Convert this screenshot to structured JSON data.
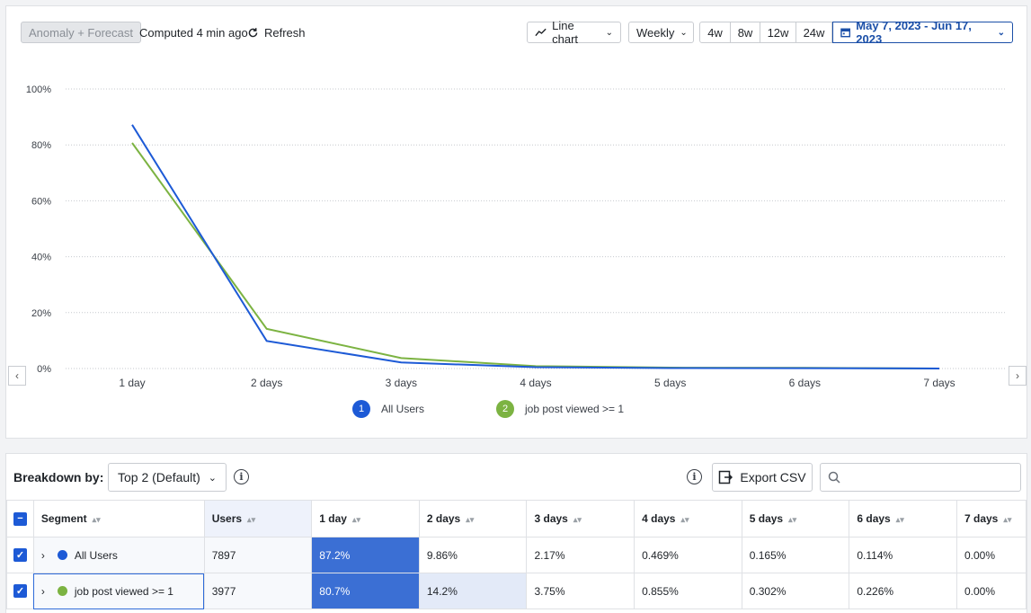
{
  "toolbar": {
    "anomaly_label": "Anomaly + Forecast",
    "computed_text": "Computed 4 min ago",
    "refresh_label": "Refresh",
    "chart_type_label": "Line chart",
    "interval_label": "Weekly",
    "range_options": [
      "4w",
      "8w",
      "12w",
      "24w"
    ],
    "date_range": "May 7, 2023 - Jun 17, 2023"
  },
  "chart_data": {
    "type": "line",
    "x": [
      "1 day",
      "2 days",
      "3 days",
      "4 days",
      "5 days",
      "6 days",
      "7 days"
    ],
    "y_ticks": [
      "100%",
      "80%",
      "60%",
      "40%",
      "20%",
      "0%"
    ],
    "ylim": [
      0,
      100
    ],
    "grid": true,
    "series": [
      {
        "name": "All Users",
        "number": "1",
        "color": "#1d5ad6",
        "values": [
          87.2,
          9.86,
          2.17,
          0.469,
          0.165,
          0.114,
          0.0
        ]
      },
      {
        "name": "job post viewed >= 1",
        "number": "2",
        "color": "#7cb342",
        "values": [
          80.7,
          14.2,
          3.75,
          0.855,
          0.302,
          0.226,
          0.0
        ]
      }
    ]
  },
  "breakdown": {
    "label": "Breakdown by:",
    "select_value": "Top 2 (Default)",
    "export_label": "Export CSV",
    "search_placeholder": ""
  },
  "table": {
    "headers": [
      "Segment",
      "Users",
      "1 day",
      "2 days",
      "3 days",
      "4 days",
      "5 days",
      "6 days",
      "7 days"
    ],
    "rows": [
      {
        "segment": "All Users",
        "color": "#1d5ad6",
        "users": "7897",
        "values": [
          "87.2%",
          "9.86%",
          "2.17%",
          "0.469%",
          "0.165%",
          "0.114%",
          "0.00%"
        ]
      },
      {
        "segment": "job post viewed >= 1",
        "color": "#7cb342",
        "users": "3977",
        "values": [
          "80.7%",
          "14.2%",
          "3.75%",
          "0.855%",
          "0.302%",
          "0.226%",
          "0.00%"
        ]
      }
    ]
  },
  "colors": {
    "accent": "#1d5ad6",
    "heat_strong": "#3b6fd4",
    "heat_light": "#e3eaf8"
  }
}
